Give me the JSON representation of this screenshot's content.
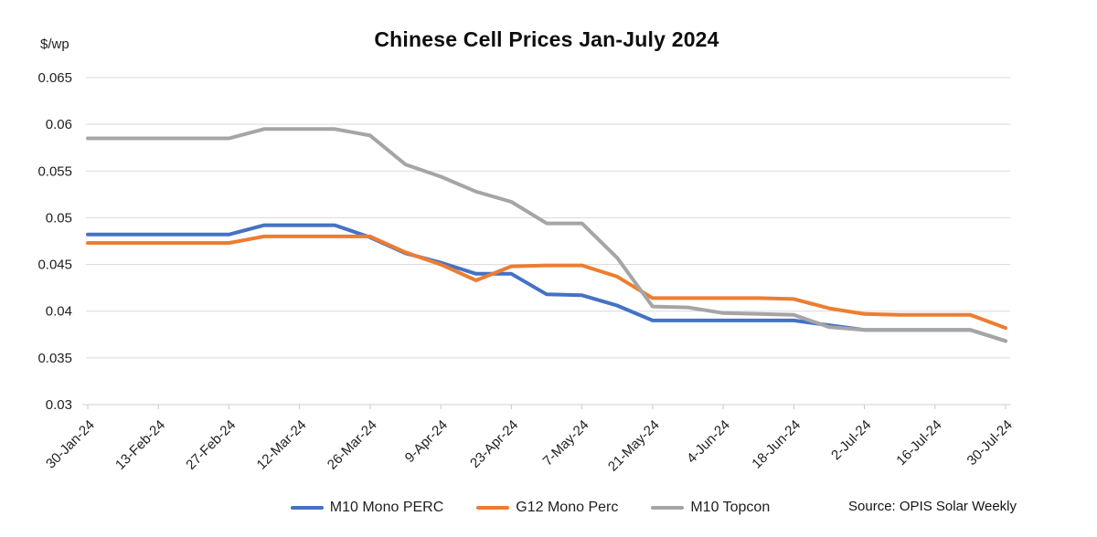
{
  "title": "Chinese Cell Prices Jan-July 2024",
  "y_axis_unit": "$/wp",
  "source": "Source: OPIS Solar Weekly",
  "chart_data": {
    "type": "line",
    "title": "Chinese Cell Prices Jan-July 2024",
    "xlabel": "",
    "ylabel": "$/wp",
    "ylim": [
      0.03,
      0.065
    ],
    "grid": true,
    "legend_position": "bottom",
    "y_ticks": [
      {
        "value": 0.065,
        "label": "0.065"
      },
      {
        "value": 0.06,
        "label": "0.06"
      },
      {
        "value": 0.055,
        "label": "0.055"
      },
      {
        "value": 0.05,
        "label": "0.05"
      },
      {
        "value": 0.045,
        "label": "0.045"
      },
      {
        "value": 0.04,
        "label": "0.04"
      },
      {
        "value": 0.035,
        "label": "0.035"
      },
      {
        "value": 0.03,
        "label": "0.03"
      }
    ],
    "x": [
      "30-Jan-24",
      "6-Feb-24",
      "13-Feb-24",
      "20-Feb-24",
      "27-Feb-24",
      "5-Mar-24",
      "12-Mar-24",
      "19-Mar-24",
      "26-Mar-24",
      "2-Apr-24",
      "9-Apr-24",
      "16-Apr-24",
      "23-Apr-24",
      "30-Apr-24",
      "7-May-24",
      "14-May-24",
      "21-May-24",
      "28-May-24",
      "4-Jun-24",
      "11-Jun-24",
      "18-Jun-24",
      "25-Jun-24",
      "2-Jul-24",
      "9-Jul-24",
      "16-Jul-24",
      "23-Jul-24",
      "30-Jul-24"
    ],
    "x_tick_every": 2,
    "x_tick_labels": [
      "30-Jan-24",
      "13-Feb-24",
      "27-Feb-24",
      "12-Mar-24",
      "26-Mar-24",
      "9-Apr-24",
      "23-Apr-24",
      "7-May-24",
      "21-May-24",
      "4-Jun-24",
      "18-Jun-24",
      "2-Jul-24",
      "16-Jul-24",
      "30-Jul-24"
    ],
    "series": [
      {
        "name": "M10 Mono PERC",
        "color": "#4472C4",
        "values": [
          0.0482,
          0.0482,
          0.0482,
          0.0482,
          0.0482,
          0.0492,
          0.0492,
          0.0492,
          0.0479,
          0.0462,
          0.0452,
          0.044,
          0.044,
          0.0418,
          0.0417,
          0.0406,
          0.039,
          0.039,
          0.039,
          0.039,
          0.039,
          0.0385,
          0.038,
          0.038,
          0.038,
          0.038,
          0.0368
        ]
      },
      {
        "name": "G12 Mono Perc",
        "color": "#ED7D31",
        "values": [
          0.0473,
          0.0473,
          0.0473,
          0.0473,
          0.0473,
          0.048,
          0.048,
          0.048,
          0.048,
          0.0463,
          0.045,
          0.0433,
          0.0448,
          0.0449,
          0.0449,
          0.0437,
          0.0414,
          0.0414,
          0.0414,
          0.0414,
          0.0413,
          0.0403,
          0.0397,
          0.0396,
          0.0396,
          0.0396,
          0.0382
        ]
      },
      {
        "name": "M10 Topcon",
        "color": "#A5A5A5",
        "values": [
          0.0585,
          0.0585,
          0.0585,
          0.0585,
          0.0585,
          0.0595,
          0.0595,
          0.0595,
          0.0588,
          0.0557,
          0.0544,
          0.0528,
          0.0517,
          0.0494,
          0.0494,
          0.0457,
          0.0405,
          0.0404,
          0.0398,
          0.0397,
          0.0396,
          0.0383,
          0.038,
          0.038,
          0.038,
          0.038,
          0.0368
        ]
      }
    ]
  }
}
